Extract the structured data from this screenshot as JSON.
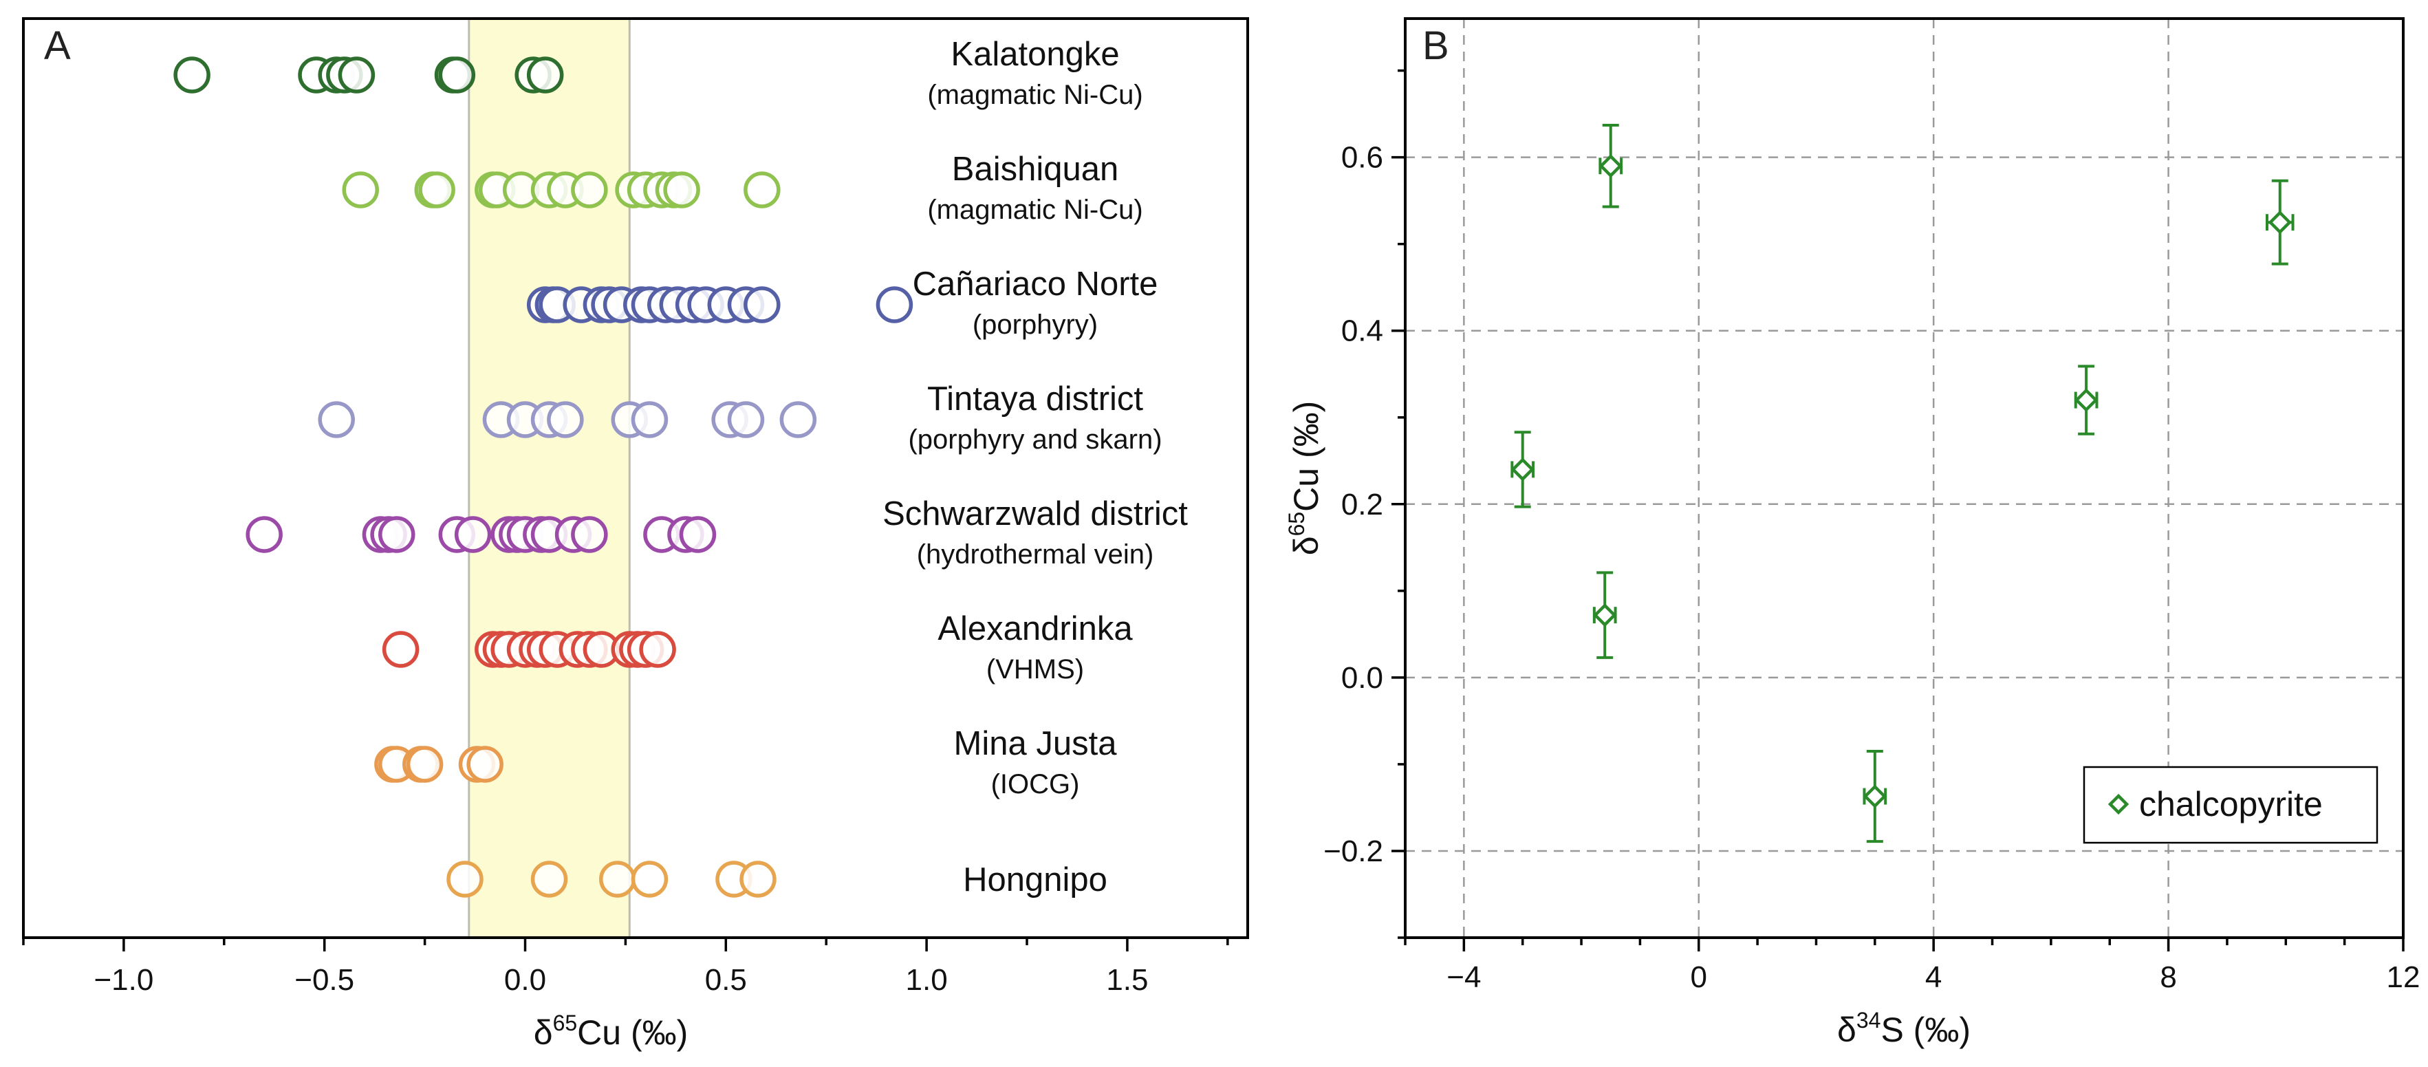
{
  "chart_data": [
    {
      "type": "scatter",
      "panel_label": "A",
      "xlabel_prefix": "δ",
      "xlabel_sup": "65",
      "xlabel_suffix": "Cu (‰)",
      "xlim": [
        -1.25,
        1.8
      ],
      "xticks": [
        -1.0,
        -0.5,
        0.0,
        0.5,
        1.0,
        1.5
      ],
      "xtick_labels": [
        "−1.0",
        "−0.5",
        "0.0",
        "0.5",
        "1.0",
        "1.5"
      ],
      "band": {
        "range": [
          -0.14,
          0.26
        ],
        "color": "#fdfbd2"
      },
      "groups": [
        {
          "name": "Kalatongke",
          "type": "(magmatic Ni-Cu)",
          "color": "#2e6e2e",
          "values": [
            -0.83,
            -0.52,
            -0.47,
            -0.45,
            -0.42,
            -0.18,
            -0.17,
            0.02,
            0.05
          ]
        },
        {
          "name": "Baishiquan",
          "type": "(magmatic Ni-Cu)",
          "color": "#8fc24f",
          "values": [
            -0.41,
            -0.23,
            -0.22,
            -0.08,
            -0.07,
            -0.01,
            0.06,
            0.1,
            0.16,
            0.27,
            0.3,
            0.34,
            0.37,
            0.39,
            0.59
          ]
        },
        {
          "name": "Cañariaco Norte",
          "type": "(porphyry)",
          "color": "#5560a6",
          "values": [
            0.05,
            0.07,
            0.08,
            0.14,
            0.19,
            0.21,
            0.24,
            0.29,
            0.31,
            0.35,
            0.38,
            0.42,
            0.45,
            0.5,
            0.55,
            0.59,
            0.92
          ]
        },
        {
          "name": "Tintaya district",
          "type": "(porphyry and skarn)",
          "color": "#9898c8",
          "values": [
            -0.47,
            -0.06,
            0.0,
            0.06,
            0.1,
            0.26,
            0.31,
            0.51,
            0.55,
            0.68
          ]
        },
        {
          "name": "Schwarzwald  district",
          "type": "(hydrothermal vein)",
          "color": "#9b4aa8",
          "values": [
            -0.65,
            -0.36,
            -0.34,
            -0.32,
            -0.17,
            -0.13,
            -0.04,
            -0.02,
            0.0,
            0.04,
            0.06,
            0.12,
            0.16,
            0.34,
            0.4,
            0.43
          ]
        },
        {
          "name": "Alexandrinka",
          "type": "(VHMS)",
          "color": "#d94b3e",
          "values": [
            -0.31,
            -0.08,
            -0.06,
            -0.04,
            0.0,
            0.03,
            0.05,
            0.08,
            0.13,
            0.16,
            0.19,
            0.26,
            0.28,
            0.3,
            0.33
          ]
        },
        {
          "name": "Mina Justa",
          "type": "(IOCG)",
          "color": "#e89a4f",
          "values": [
            -0.33,
            -0.32,
            -0.26,
            -0.25,
            -0.12,
            -0.1
          ]
        },
        {
          "name": "Hongnipo",
          "type": "",
          "color": "#e8a550",
          "values": [
            -0.15,
            0.06,
            0.23,
            0.31,
            0.52,
            0.58
          ]
        }
      ]
    },
    {
      "type": "scatter",
      "panel_label": "B",
      "xlabel_prefix": "δ",
      "xlabel_sup": "34",
      "xlabel_suffix": "S (‰)",
      "ylabel_prefix": "δ",
      "ylabel_sup": "65",
      "ylabel_suffix": "Cu (‰)",
      "xlim": [
        -5,
        12
      ],
      "ylim": [
        -0.3,
        0.76
      ],
      "xticks": [
        -4,
        0,
        4,
        8,
        12
      ],
      "xtick_labels": [
        "−4",
        "0",
        "4",
        "8",
        "12"
      ],
      "yticks": [
        -0.2,
        0.0,
        0.2,
        0.4,
        0.6
      ],
      "ytick_labels": [
        "−0.2",
        "0.0",
        "0.2",
        "0.4",
        "0.6"
      ],
      "grid": true,
      "color": "#2a8a2a",
      "legend": {
        "label": "chalcopyrite",
        "position": "bottom-right"
      },
      "series": [
        {
          "name": "chalcopyrite",
          "points": [
            {
              "x": -1.5,
              "y": 0.59,
              "xerr": 0.18,
              "yerr": 0.047
            },
            {
              "x": -3.0,
              "y": 0.24,
              "xerr": 0.18,
              "yerr": 0.043
            },
            {
              "x": -1.6,
              "y": 0.072,
              "xerr": 0.18,
              "yerr": 0.049
            },
            {
              "x": 3.0,
              "y": -0.137,
              "xerr": 0.18,
              "yerr": 0.052
            },
            {
              "x": 6.6,
              "y": 0.32,
              "xerr": 0.18,
              "yerr": 0.039
            },
            {
              "x": 9.9,
              "y": 0.525,
              "xerr": 0.22,
              "yerr": 0.048
            }
          ]
        }
      ]
    }
  ]
}
